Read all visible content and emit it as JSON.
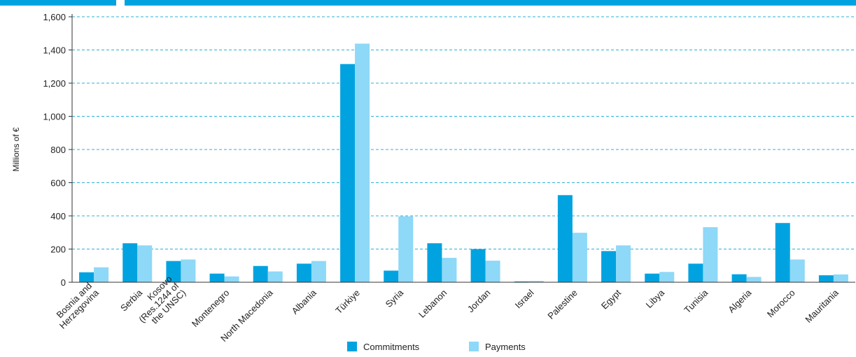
{
  "chart_data": {
    "type": "bar",
    "ylabel": "Millions  of €",
    "ylim": [
      0,
      1600
    ],
    "yticks": [
      "0",
      "200",
      "400",
      "600",
      "800",
      "1,000",
      "1,200",
      "1,400",
      "1,600"
    ],
    "grid": true,
    "legend_position": "bottom-center",
    "categories": [
      [
        "Bosnia and",
        "Herzegovina"
      ],
      [
        "Serbia"
      ],
      [
        "Kosovo",
        "(Res.1244 of",
        "the UNSC)"
      ],
      [
        "Montenegro"
      ],
      [
        "North Macedonia"
      ],
      [
        "Albania"
      ],
      [
        "Türkiye"
      ],
      [
        "Syria"
      ],
      [
        "Lebanon"
      ],
      [
        "Jordan"
      ],
      [
        "Israel"
      ],
      [
        "Palestine"
      ],
      [
        "Egypt"
      ],
      [
        "Libya"
      ],
      [
        "Tunisia"
      ],
      [
        "Algeria"
      ],
      [
        "Morocco"
      ],
      [
        "Mauritania"
      ]
    ],
    "series": [
      {
        "name": "Commitments",
        "color": "#00a3e0",
        "values": [
          60,
          235,
          128,
          52,
          98,
          112,
          1315,
          70,
          235,
          200,
          5,
          525,
          188,
          52,
          112,
          48,
          357,
          42
        ]
      },
      {
        "name": "Payments",
        "color": "#8ed8f8",
        "values": [
          90,
          222,
          137,
          35,
          65,
          128,
          1438,
          397,
          147,
          130,
          8,
          298,
          222,
          62,
          332,
          32,
          137,
          47
        ]
      }
    ]
  }
}
